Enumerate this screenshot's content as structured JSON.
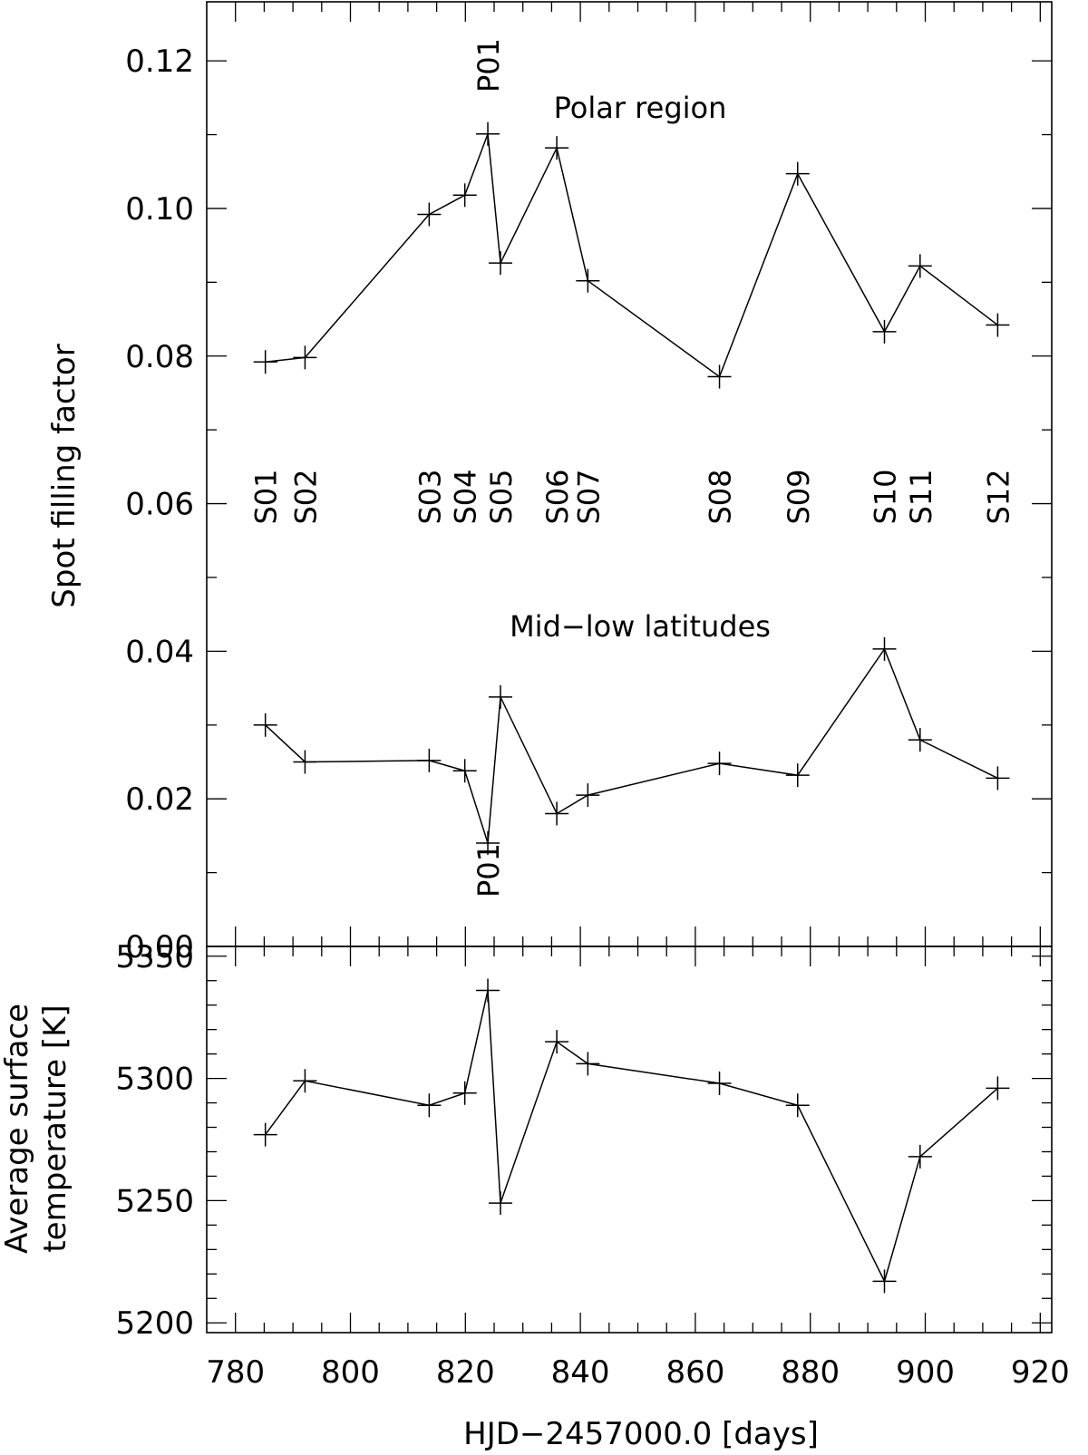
{
  "chart_data": [
    {
      "type": "line",
      "ylabel": "Spot filling factor",
      "xlim": [
        775,
        922
      ],
      "ylim": [
        0.0,
        0.128
      ],
      "y_ticks": [
        "0.00",
        "0.02",
        "0.04",
        "0.06",
        "0.08",
        "0.10",
        "0.12"
      ],
      "y_tick_values": [
        0.0,
        0.02,
        0.04,
        0.06,
        0.08,
        0.1,
        0.12
      ],
      "series": [
        {
          "x": [
            785.2,
            792.1,
            813.7,
            819.9,
            823.9,
            826.1,
            835.9,
            841.3,
            864.2,
            877.8,
            892.9,
            899.1,
            912.6
          ],
          "values": [
            0.0792,
            0.0798,
            0.0992,
            0.1018,
            0.1101,
            0.0926,
            0.1082,
            0.0902,
            0.0772,
            0.1047,
            0.0833,
            0.0922,
            0.0842
          ]
        },
        {
          "x": [
            785.2,
            792.1,
            813.7,
            819.9,
            823.9,
            826.1,
            835.9,
            841.3,
            864.2,
            877.8,
            892.9,
            899.1,
            912.6
          ],
          "values": [
            0.03,
            0.025,
            0.0252,
            0.0238,
            0.014,
            0.0338,
            0.018,
            0.0205,
            0.0248,
            0.0232,
            0.0403,
            0.028,
            0.0228
          ]
        }
      ],
      "annotations": {
        "polar_label": "Polar region",
        "midlow_label": "Mid−low latitudes",
        "p01_top": "P01",
        "p01_bottom": "P01",
        "spot_labels": [
          {
            "text": "S01",
            "x": 785.2
          },
          {
            "text": "S02",
            "x": 792.1
          },
          {
            "text": "S03",
            "x": 813.7
          },
          {
            "text": "S04",
            "x": 819.9
          },
          {
            "text": "S05",
            "x": 826.1
          },
          {
            "text": "S06",
            "x": 835.9
          },
          {
            "text": "S07",
            "x": 841.3
          },
          {
            "text": "S08",
            "x": 864.2
          },
          {
            "text": "S09",
            "x": 877.8
          },
          {
            "text": "S10",
            "x": 892.9
          },
          {
            "text": "S11",
            "x": 899.1
          },
          {
            "text": "S12",
            "x": 912.6
          }
        ]
      }
    },
    {
      "type": "line",
      "ylabel_line1": "Average surface",
      "ylabel_line2": "temperature [K]",
      "xlabel": "HJD−2457000.0 [days]",
      "xlim": [
        775,
        922
      ],
      "ylim": [
        5196,
        5354
      ],
      "x_ticks": [
        "780",
        "800",
        "820",
        "840",
        "860",
        "880",
        "900",
        "920"
      ],
      "x_tick_values": [
        780,
        800,
        820,
        840,
        860,
        880,
        900,
        920
      ],
      "y_ticks": [
        "5200",
        "5250",
        "5300",
        "5350"
      ],
      "y_tick_values": [
        5200,
        5250,
        5300,
        5350
      ],
      "series": [
        {
          "x": [
            785.2,
            792.1,
            813.7,
            819.9,
            823.9,
            826.1,
            835.9,
            841.3,
            864.2,
            877.8,
            892.9,
            899.1,
            912.6
          ],
          "values": [
            5277,
            5299,
            5289,
            5294,
            5336,
            5249,
            5315,
            5306,
            5298,
            5289,
            5217,
            5268,
            5296
          ]
        }
      ]
    }
  ]
}
